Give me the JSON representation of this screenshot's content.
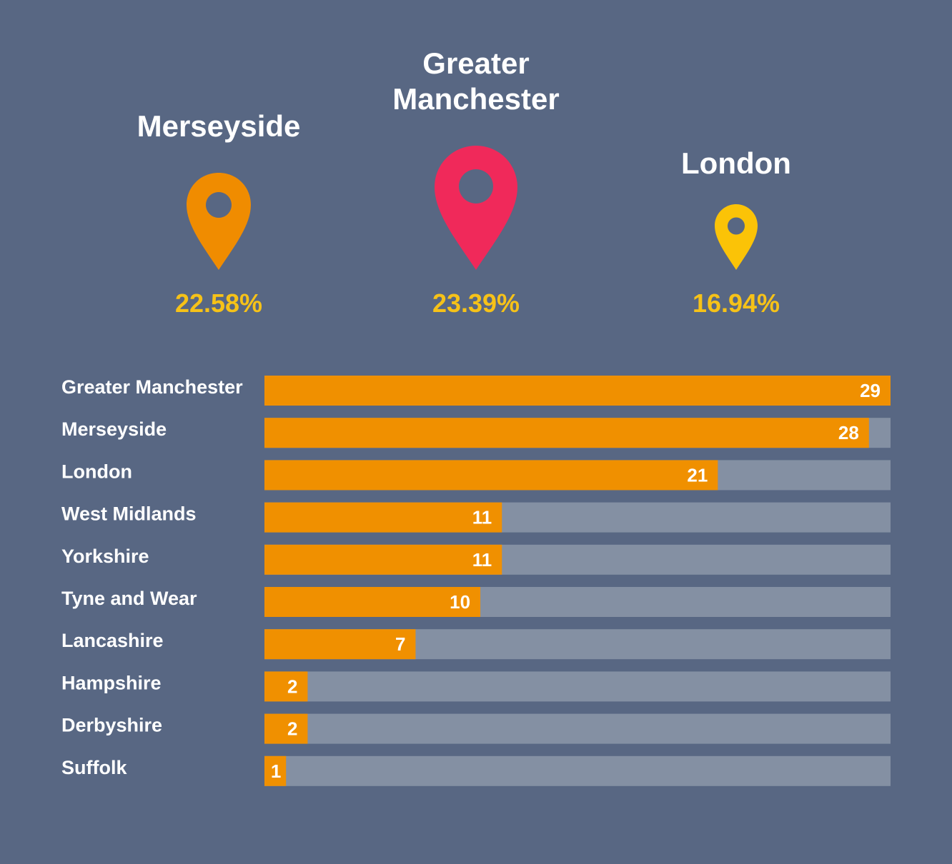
{
  "colors": {
    "background": "#586783",
    "bar_fill": "#f09000",
    "bar_track": "#8490a3",
    "percent_text": "#f6c218",
    "pin_merseyside": "#f08c00",
    "pin_greater_manchester": "#f0295a",
    "pin_london": "#fbc307"
  },
  "highlights": [
    {
      "id": "merseyside",
      "label": "Merseyside",
      "percent": "22.58%",
      "pin_color": "#f08c00",
      "pin_icon": "map-pin-icon"
    },
    {
      "id": "greater-manchester",
      "label": "Greater Manchester",
      "percent": "23.39%",
      "pin_color": "#f0295a",
      "pin_icon": "map-pin-icon"
    },
    {
      "id": "london",
      "label": "London",
      "percent": "16.94%",
      "pin_color": "#fbc307",
      "pin_icon": "map-pin-icon"
    }
  ],
  "chart_data": {
    "type": "bar",
    "orientation": "horizontal",
    "categories": [
      "Greater Manchester",
      "Merseyside",
      "London",
      "West Midlands",
      "Yorkshire",
      "Tyne and Wear",
      "Lancashire",
      "Hampshire",
      "Derbyshire",
      "Suffolk"
    ],
    "values": [
      29,
      28,
      21,
      11,
      11,
      10,
      7,
      2,
      2,
      1
    ],
    "xlim": [
      0,
      29
    ],
    "grid": false,
    "legend": "none",
    "data_labels": true
  }
}
